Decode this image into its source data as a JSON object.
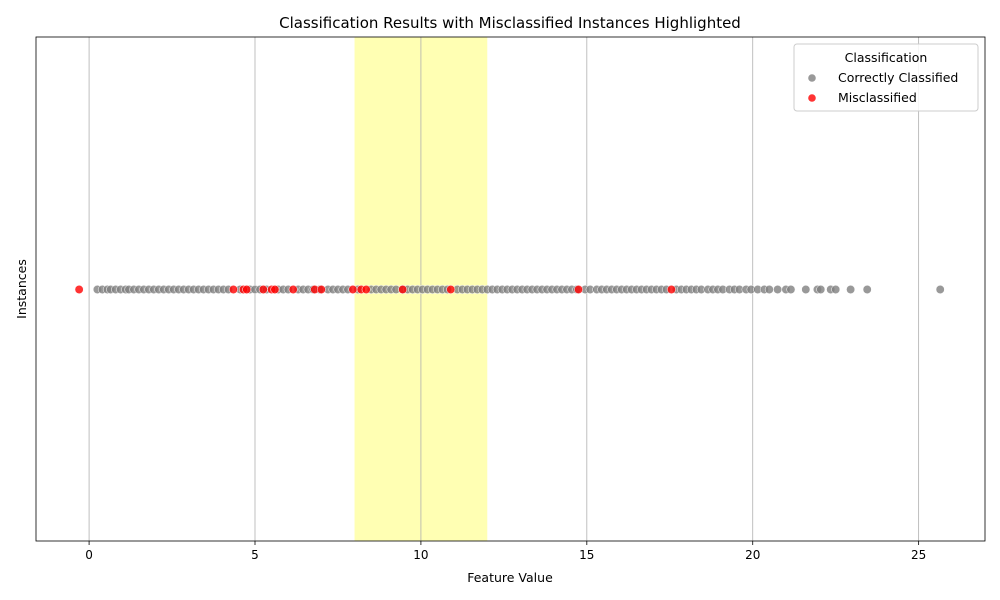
{
  "chart_data": {
    "type": "scatter",
    "title": "Classification Results with Misclassified Instances Highlighted",
    "xlabel": "Feature Value",
    "ylabel": "Instances",
    "xlim": [
      -1.6,
      27.0
    ],
    "xticks": [
      0,
      5,
      10,
      15,
      20,
      25
    ],
    "grid": "vertical",
    "highlight_band": {
      "x_start": 8,
      "x_end": 12,
      "color": "#ffff99"
    },
    "legend": {
      "title": "Classification",
      "position": "top-right",
      "entries": [
        {
          "label": "Correctly Classified",
          "color": "#808080"
        },
        {
          "label": "Misclassified",
          "color": "#ff0000"
        }
      ]
    },
    "series": [
      {
        "name": "Correctly Classified",
        "color": "#808080",
        "x": [
          0.25,
          0.4,
          0.55,
          0.65,
          0.8,
          0.95,
          1.1,
          1.2,
          1.35,
          1.5,
          1.65,
          1.8,
          1.95,
          2.1,
          2.25,
          2.4,
          2.55,
          2.7,
          2.85,
          3.0,
          3.15,
          3.3,
          3.45,
          3.6,
          3.75,
          3.9,
          4.05,
          4.2,
          4.55,
          4.85,
          5.0,
          5.15,
          5.35,
          5.7,
          5.85,
          6.0,
          6.3,
          6.45,
          6.6,
          6.75,
          6.95,
          7.2,
          7.35,
          7.5,
          7.65,
          7.8,
          8.1,
          8.5,
          8.65,
          8.8,
          8.95,
          9.1,
          9.25,
          9.45,
          9.6,
          9.75,
          9.9,
          10.05,
          10.2,
          10.35,
          10.5,
          10.65,
          10.8,
          11.1,
          11.25,
          11.4,
          11.55,
          11.7,
          11.85,
          12.0,
          12.15,
          12.3,
          12.45,
          12.6,
          12.75,
          12.9,
          13.05,
          13.2,
          13.35,
          13.5,
          13.65,
          13.8,
          13.95,
          14.1,
          14.25,
          14.4,
          14.55,
          14.7,
          14.95,
          15.1,
          15.3,
          15.45,
          15.6,
          15.75,
          15.9,
          16.05,
          16.2,
          16.35,
          16.5,
          16.65,
          16.8,
          16.95,
          17.1,
          17.25,
          17.4,
          17.7,
          17.85,
          18.0,
          18.15,
          18.3,
          18.45,
          18.65,
          18.8,
          18.95,
          19.1,
          19.3,
          19.45,
          19.6,
          19.8,
          19.95,
          20.15,
          20.35,
          20.5,
          20.75,
          21.0,
          21.15,
          21.6,
          21.95,
          22.05,
          22.35,
          22.5,
          22.95,
          23.45,
          25.65
        ],
        "y": 0
      },
      {
        "name": "Misclassified",
        "color": "#ff0000",
        "x": [
          -0.3,
          4.35,
          4.65,
          4.75,
          5.25,
          5.5,
          5.6,
          6.15,
          6.8,
          7.0,
          7.95,
          8.2,
          8.35,
          9.45,
          10.9,
          14.75,
          17.55
        ],
        "y": 0
      }
    ]
  }
}
